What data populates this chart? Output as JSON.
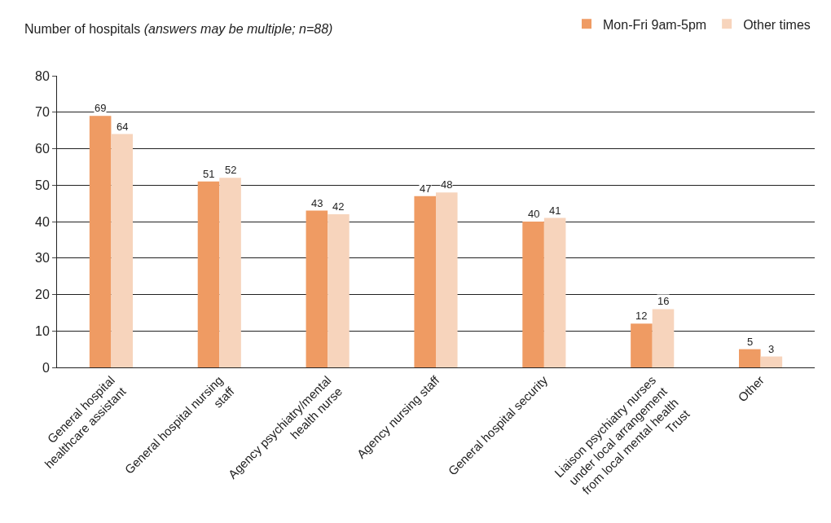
{
  "chart_data": {
    "type": "bar",
    "ylabel": "Number of hospitals",
    "annotations": [
      "(answers may be multiple; n=88)"
    ],
    "categories": [
      "General hospital healthcare assistant",
      "General hospital nursing staff",
      "Agency psychiatry/mental health nurse",
      "Agency nursing staff",
      "General hospital security",
      "Liaison psychiatry nurses under local arrangement from local mental health Trust",
      "Other"
    ],
    "series": [
      {
        "name": "Mon-Fri 9am-5pm",
        "color": "#ef9b63",
        "values": [
          69,
          51,
          43,
          47,
          40,
          12,
          5
        ]
      },
      {
        "name": "Other times",
        "color": "#f7d4bc",
        "values": [
          64,
          52,
          42,
          48,
          41,
          16,
          3
        ]
      }
    ],
    "ylim": [
      0,
      80
    ],
    "yticks": [
      0,
      10,
      20,
      30,
      40,
      50,
      60,
      70,
      80
    ],
    "grid": "y",
    "legend": "top right",
    "data_labels": true
  }
}
